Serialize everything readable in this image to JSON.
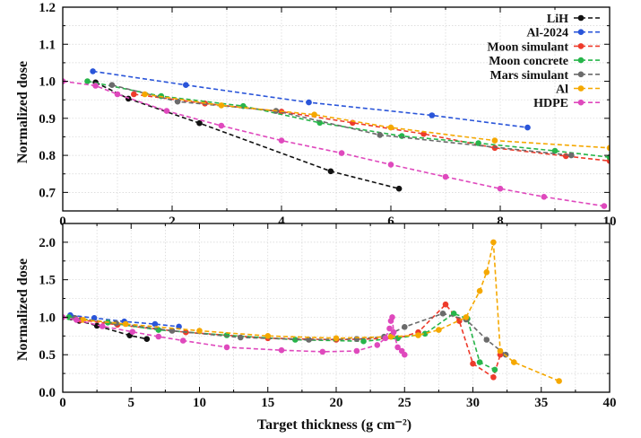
{
  "xlabel": "Target thickness (g cm⁻²)",
  "colors": {
    "LiH": "#111111",
    "Al-2024": "#2a55d9",
    "Moon simulant": "#ee3b2b",
    "Moon concrete": "#27b54a",
    "Mars simulant": "#6b6b6b",
    "Al": "#f5a800",
    "HDPE": "#df49bd"
  },
  "chart_data": [
    {
      "type": "line",
      "ylabel": "Normalized dose",
      "xlim": [
        0,
        10
      ],
      "ylim": [
        0.65,
        1.2
      ],
      "xticks": [
        0,
        2,
        4,
        6,
        8,
        10
      ],
      "yticks": [
        0.7,
        0.8,
        0.9,
        1.0,
        1.1,
        1.2
      ],
      "xtick_labels": [
        "0",
        "2",
        "4",
        "6",
        "8",
        "10"
      ],
      "ytick_labels": [
        "0.7",
        "0.8",
        "0.9",
        "1.0",
        "1.1",
        "1.2"
      ],
      "grid": true,
      "legend_position": "top-right",
      "series": [
        {
          "name": "LiH",
          "x": [
            0.6,
            1.2,
            2.5,
            4.9,
            6.15
          ],
          "y": [
            0.997,
            0.953,
            0.887,
            0.757,
            0.71
          ]
        },
        {
          "name": "Al-2024",
          "x": [
            0.55,
            2.25,
            4.5,
            6.75,
            8.5
          ],
          "y": [
            1.027,
            0.99,
            0.943,
            0.908,
            0.875
          ]
        },
        {
          "name": "Moon simulant",
          "x": [
            1.3,
            2.6,
            4.0,
            5.3,
            6.6,
            7.9,
            9.2,
            10.0
          ],
          "y": [
            0.965,
            0.94,
            0.918,
            0.888,
            0.858,
            0.82,
            0.798,
            0.785
          ]
        },
        {
          "name": "Moon concrete",
          "x": [
            0.45,
            1.8,
            3.3,
            4.7,
            6.2,
            7.6,
            9.0,
            10.0
          ],
          "y": [
            1.0,
            0.96,
            0.933,
            0.888,
            0.852,
            0.833,
            0.812,
            0.795
          ]
        },
        {
          "name": "Mars simulant",
          "x": [
            0.9,
            2.1,
            3.9,
            5.8,
            9.3
          ],
          "y": [
            0.99,
            0.945,
            0.92,
            0.855,
            0.8
          ]
        },
        {
          "name": "Al",
          "x": [
            1.5,
            2.9,
            4.6,
            6.0,
            7.9,
            10.0
          ],
          "y": [
            0.965,
            0.935,
            0.91,
            0.875,
            0.84,
            0.82
          ]
        },
        {
          "name": "HDPE",
          "x": [
            0.0,
            0.6,
            1.0,
            1.9,
            2.9,
            4.0,
            5.1,
            6.0,
            7.0,
            8.0,
            8.8,
            9.9
          ],
          "y": [
            1.0,
            0.988,
            0.965,
            0.92,
            0.88,
            0.84,
            0.806,
            0.775,
            0.742,
            0.71,
            0.688,
            0.663
          ]
        }
      ]
    },
    {
      "type": "line",
      "ylabel": "Normalized dose",
      "xlim": [
        0,
        40
      ],
      "ylim": [
        0,
        2.25
      ],
      "xticks": [
        0,
        5,
        10,
        15,
        20,
        25,
        30,
        35,
        40
      ],
      "yticks": [
        0.0,
        0.5,
        1.0,
        1.5,
        2.0
      ],
      "xtick_labels": [
        "0",
        "5",
        "10",
        "15",
        "20",
        "25",
        "30",
        "35",
        "40"
      ],
      "ytick_labels": [
        "0.0",
        "0.5",
        "1.0",
        "1.5",
        "2.0"
      ],
      "grid": true,
      "series": [
        {
          "name": "LiH",
          "x": [
            0.6,
            1.2,
            2.5,
            4.9,
            6.15
          ],
          "y": [
            0.997,
            0.953,
            0.887,
            0.757,
            0.71
          ]
        },
        {
          "name": "Al-2024",
          "x": [
            0.55,
            2.3,
            4.5,
            6.75,
            8.5
          ],
          "y": [
            1.027,
            0.99,
            0.943,
            0.908,
            0.875
          ]
        },
        {
          "name": "Moon simulant",
          "x": [
            1.3,
            4.0,
            9.0,
            15.0,
            20.0,
            24.5,
            26.0,
            28.0,
            29.0,
            30.0,
            31.5,
            32.0
          ],
          "y": [
            0.965,
            0.9,
            0.8,
            0.72,
            0.7,
            0.72,
            0.8,
            1.17,
            0.95,
            0.38,
            0.2,
            0.5
          ]
        },
        {
          "name": "Moon concrete",
          "x": [
            0.45,
            3.3,
            7.0,
            12.0,
            17.0,
            22.0,
            24.5,
            26.5,
            28.6,
            29.6,
            30.5,
            31.6
          ],
          "y": [
            1.0,
            0.93,
            0.83,
            0.76,
            0.7,
            0.68,
            0.72,
            0.78,
            1.05,
            0.98,
            0.4,
            0.3
          ]
        },
        {
          "name": "Mars simulant",
          "x": [
            0.9,
            3.9,
            8.0,
            13.0,
            18.0,
            21.5,
            23.5,
            25.0,
            27.8,
            29.5,
            31.0,
            32.4
          ],
          "y": [
            0.99,
            0.92,
            0.82,
            0.73,
            0.7,
            0.71,
            0.74,
            0.87,
            1.05,
            0.97,
            0.7,
            0.5
          ]
        },
        {
          "name": "Al",
          "x": [
            1.5,
            4.6,
            10.0,
            15.0,
            20.0,
            24.0,
            26.0,
            27.5,
            29.5,
            30.5,
            31.0,
            31.5,
            32.0,
            33.0,
            36.3
          ],
          "y": [
            0.965,
            0.91,
            0.82,
            0.75,
            0.72,
            0.74,
            0.76,
            0.83,
            1.0,
            1.35,
            1.6,
            2.0,
            0.55,
            0.4,
            0.15
          ]
        },
        {
          "name": "HDPE",
          "x": [
            0.0,
            1.0,
            2.9,
            5.1,
            7.0,
            8.8,
            12.0,
            16.0,
            19.0,
            21.5,
            23.0,
            23.6,
            23.9,
            24.0,
            24.1,
            24.2,
            24.5,
            24.8,
            25.0
          ],
          "y": [
            1.0,
            0.965,
            0.88,
            0.806,
            0.742,
            0.688,
            0.6,
            0.56,
            0.54,
            0.55,
            0.63,
            0.72,
            0.85,
            0.95,
            1.0,
            0.8,
            0.6,
            0.55,
            0.5
          ]
        }
      ]
    }
  ]
}
